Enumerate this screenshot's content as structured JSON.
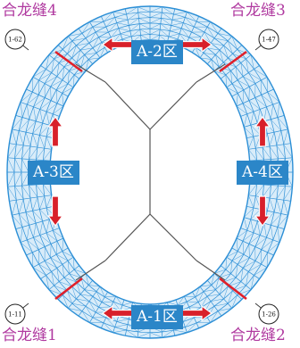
{
  "closure_seams": [
    {
      "id": "seam-4",
      "label": "合龙缝4"
    },
    {
      "id": "seam-3",
      "label": "合龙缝3"
    },
    {
      "id": "seam-1",
      "label": "合龙缝1"
    },
    {
      "id": "seam-2",
      "label": "合龙缝2"
    }
  ],
  "zones": [
    {
      "id": "zone-a2",
      "label": "A-2区"
    },
    {
      "id": "zone-a3",
      "label": "A-3区"
    },
    {
      "id": "zone-a4",
      "label": "A-4区"
    },
    {
      "id": "zone-a1",
      "label": "A-1区"
    }
  ],
  "nodes": [
    {
      "id": "node-1-62",
      "label": "1-62"
    },
    {
      "id": "node-1-47",
      "label": "1-47"
    },
    {
      "id": "node-1-11",
      "label": "1-11"
    },
    {
      "id": "node-1-26",
      "label": "1-26"
    }
  ],
  "colors": {
    "mesh": "#2c8fd6",
    "seam_line": "#e0202a",
    "arrow": "#d8202a",
    "label_text": "#b03aa0",
    "zone_box": "#2b86c8"
  }
}
